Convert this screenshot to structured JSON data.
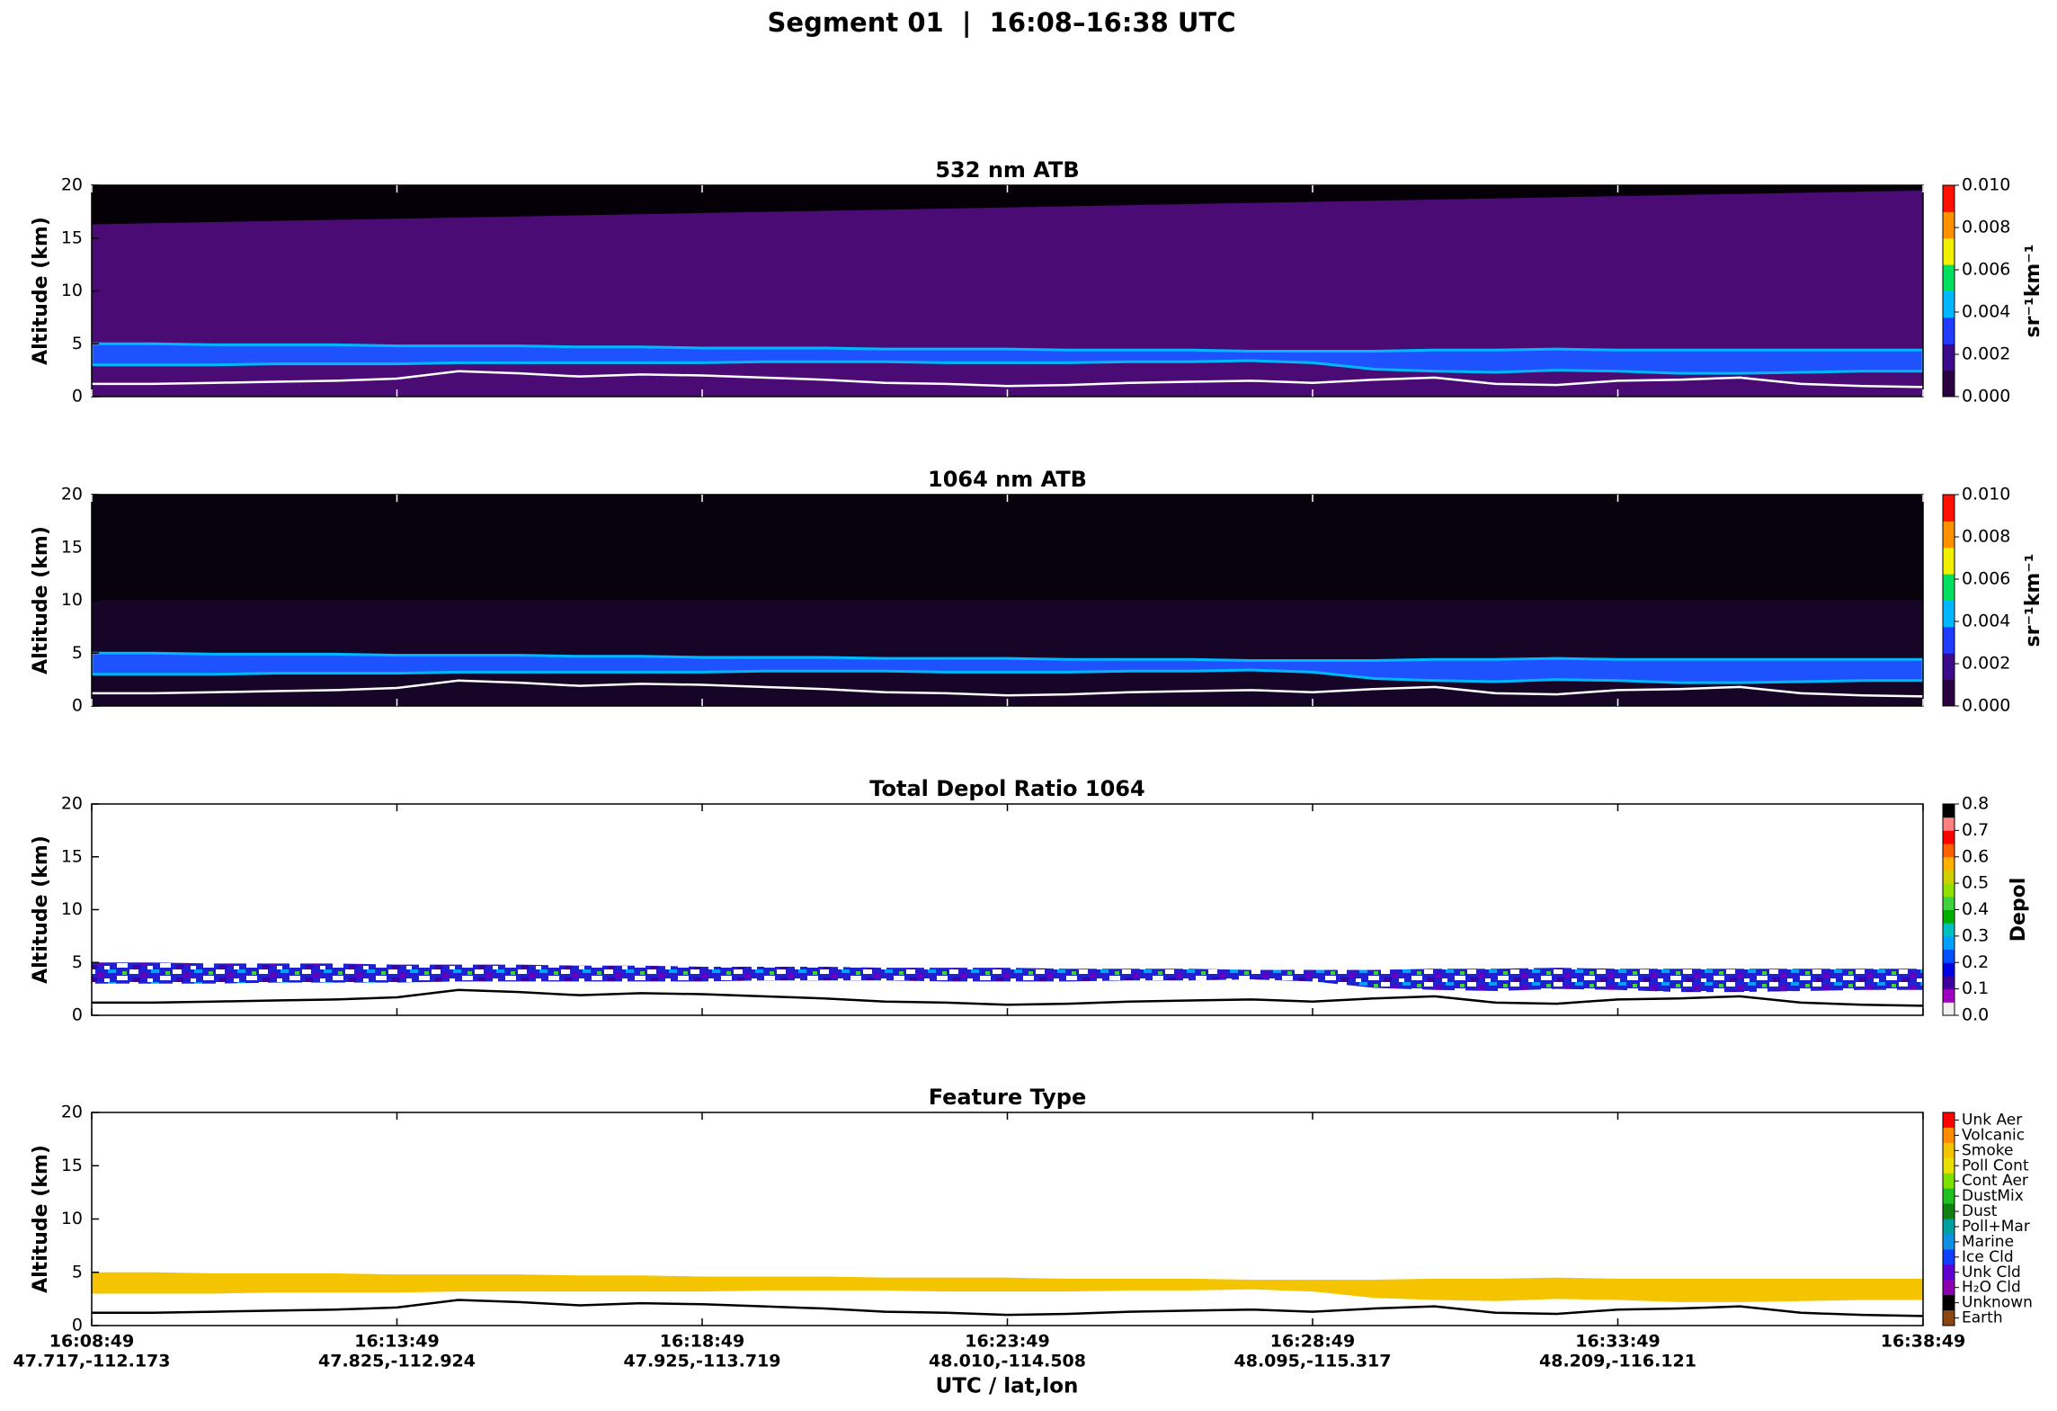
{
  "title": "Segment 01  |  16:08–16:38 UTC",
  "x_label": "UTC / lat,lon",
  "surface_altitude_km": [
    1.2,
    1.2,
    1.3,
    1.4,
    1.5,
    1.7,
    2.4,
    2.2,
    1.9,
    2.1,
    2.0,
    1.8,
    1.6,
    1.3,
    1.2,
    1.0,
    1.1,
    1.3,
    1.4,
    1.5,
    1.3,
    1.6,
    1.8,
    1.2,
    1.1,
    1.5,
    1.6,
    1.8,
    1.2,
    1.0,
    0.9
  ],
  "layer_top_km": [
    5.0,
    5.0,
    4.9,
    4.9,
    4.9,
    4.8,
    4.8,
    4.8,
    4.7,
    4.7,
    4.6,
    4.6,
    4.6,
    4.5,
    4.5,
    4.5,
    4.4,
    4.4,
    4.4,
    4.3,
    4.3,
    4.3,
    4.4,
    4.4,
    4.5,
    4.4,
    4.4,
    4.4,
    4.4,
    4.4,
    4.4
  ],
  "layer_bottom_km": [
    3.0,
    3.0,
    3.0,
    3.1,
    3.1,
    3.1,
    3.2,
    3.2,
    3.2,
    3.2,
    3.2,
    3.3,
    3.3,
    3.3,
    3.2,
    3.2,
    3.2,
    3.3,
    3.3,
    3.4,
    3.2,
    2.6,
    2.4,
    2.3,
    2.5,
    2.4,
    2.2,
    2.2,
    2.3,
    2.4,
    2.4
  ],
  "chart_data": [
    {
      "type": "atb",
      "title": "532 nm ATB",
      "y_label": "Altitude (km)",
      "ylim": [
        0,
        20
      ],
      "yticks": [
        0,
        5,
        10,
        15,
        20
      ],
      "signal_ceiling_km": [
        16.3,
        19.5
      ],
      "colorbar": {
        "label": "sr⁻¹km⁻¹",
        "clim": [
          0,
          0.01
        ],
        "colors": [
          "#2a0040",
          "#3a0a8a",
          "#1f3cff",
          "#00b8ff",
          "#00e060",
          "#f0f000",
          "#ff9000",
          "#ff1000"
        ],
        "ticks": [
          {
            "value": 0,
            "label": "0.000"
          },
          {
            "value": 0.002,
            "label": "0.002"
          },
          {
            "value": 0.004,
            "label": "0.004"
          },
          {
            "value": 0.006,
            "label": "0.006"
          },
          {
            "value": 0.008,
            "label": "0.008"
          },
          {
            "value": 0.01,
            "label": "0.010"
          }
        ]
      }
    },
    {
      "type": "atb",
      "title": "1064 nm ATB",
      "y_label": "Altitude (km)",
      "ylim": [
        0,
        20
      ],
      "yticks": [
        0,
        5,
        10,
        15,
        20
      ],
      "colorbar": {
        "label": "sr⁻¹km⁻¹",
        "clim": [
          0,
          0.01
        ],
        "colors": [
          "#2a0040",
          "#3a0a8a",
          "#1f3cff",
          "#00b8ff",
          "#00e060",
          "#f0f000",
          "#ff9000",
          "#ff1000"
        ],
        "ticks": [
          {
            "value": 0,
            "label": "0.000"
          },
          {
            "value": 0.002,
            "label": "0.002"
          },
          {
            "value": 0.004,
            "label": "0.004"
          },
          {
            "value": 0.006,
            "label": "0.006"
          },
          {
            "value": 0.008,
            "label": "0.008"
          },
          {
            "value": 0.01,
            "label": "0.010"
          }
        ]
      }
    },
    {
      "type": "depol",
      "title": "Total Depol Ratio 1064",
      "y_label": "Altitude (km)",
      "ylim": [
        0,
        20
      ],
      "yticks": [
        0,
        5,
        10,
        15,
        20
      ],
      "colorbar": {
        "label": "Depol",
        "clim": [
          0,
          0.8
        ],
        "colors": [
          "#f0f0f0",
          "#a000c0",
          "#4000a0",
          "#0000e0",
          "#0050ff",
          "#00a0ff",
          "#00c0c0",
          "#00b000",
          "#40d040",
          "#90e000",
          "#d0d000",
          "#ffb000",
          "#ff6000",
          "#ff0000",
          "#ff8080",
          "#000000"
        ],
        "ticks": [
          {
            "value": 0,
            "label": "0.0"
          },
          {
            "value": 0.1,
            "label": "0.1"
          },
          {
            "value": 0.2,
            "label": "0.2"
          },
          {
            "value": 0.3,
            "label": "0.3"
          },
          {
            "value": 0.4,
            "label": "0.4"
          },
          {
            "value": 0.5,
            "label": "0.5"
          },
          {
            "value": 0.6,
            "label": "0.6"
          },
          {
            "value": 0.7,
            "label": "0.7"
          },
          {
            "value": 0.8,
            "label": "0.8"
          }
        ]
      }
    },
    {
      "type": "feature",
      "title": "Feature Type",
      "y_label": "Altitude (km)",
      "ylim": [
        0,
        20
      ],
      "yticks": [
        0,
        5,
        10,
        15,
        20
      ],
      "categories": [
        "16:08:49",
        "16:13:49",
        "16:18:49",
        "16:23:49",
        "16:28:49",
        "16:33:49",
        "16:38:49"
      ],
      "positions": [
        "47.717,-112.173",
        "47.825,-112.924",
        "47.925,-113.719",
        "48.010,-114.508",
        "48.095,-115.317",
        "48.209,-116.121",
        ""
      ],
      "classes": [
        {
          "name": "Unk Aer",
          "color": "#ff0000"
        },
        {
          "name": "Volcanic",
          "color": "#ff8c00"
        },
        {
          "name": "Smoke",
          "color": "#f5c400"
        },
        {
          "name": "Poll Cont",
          "color": "#e8e000"
        },
        {
          "name": "Cont Aer",
          "color": "#7ee000"
        },
        {
          "name": "DustMix",
          "color": "#20c020"
        },
        {
          "name": "Dust",
          "color": "#108010"
        },
        {
          "name": "Poll+Mar",
          "color": "#00a0a0"
        },
        {
          "name": "Marine",
          "color": "#1090e0"
        },
        {
          "name": "Ice Cld",
          "color": "#1040ff"
        },
        {
          "name": "Unk Cld",
          "color": "#6000d0"
        },
        {
          "name": "H₂O Cld",
          "color": "#8a00b0"
        },
        {
          "name": "Unknown",
          "color": "#000000"
        },
        {
          "name": "Earth",
          "color": "#8b4513"
        }
      ]
    }
  ]
}
